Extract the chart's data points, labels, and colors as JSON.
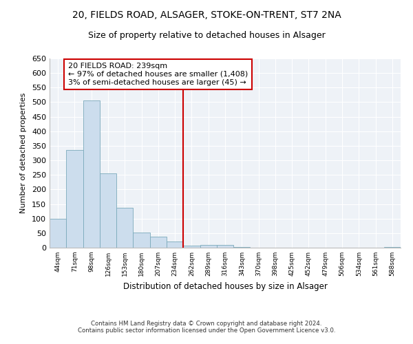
{
  "title1": "20, FIELDS ROAD, ALSAGER, STOKE-ON-TRENT, ST7 2NA",
  "title2": "Size of property relative to detached houses in Alsager",
  "xlabel": "Distribution of detached houses by size in Alsager",
  "ylabel": "Number of detached properties",
  "footer1": "Contains HM Land Registry data © Crown copyright and database right 2024.",
  "footer2": "Contains public sector information licensed under the Open Government Licence v3.0.",
  "bin_labels": [
    "44sqm",
    "71sqm",
    "98sqm",
    "126sqm",
    "153sqm",
    "180sqm",
    "207sqm",
    "234sqm",
    "262sqm",
    "289sqm",
    "316sqm",
    "343sqm",
    "370sqm",
    "398sqm",
    "425sqm",
    "452sqm",
    "479sqm",
    "506sqm",
    "534sqm",
    "561sqm",
    "588sqm"
  ],
  "bar_values": [
    100,
    335,
    505,
    255,
    138,
    53,
    38,
    22,
    6,
    10,
    10,
    3,
    1,
    1,
    1,
    1,
    0,
    0,
    0,
    0,
    3
  ],
  "bar_color": "#ccdded",
  "bar_edge_color": "#7aaabb",
  "vline_x_index": 7,
  "vline_color": "#cc0000",
  "annotation_title": "20 FIELDS ROAD: 239sqm",
  "annotation_line1": "← 97% of detached houses are smaller (1,408)",
  "annotation_line2": "3% of semi-detached houses are larger (45) →",
  "annotation_box_color": "#cc0000",
  "ylim": [
    0,
    650
  ],
  "yticks": [
    0,
    50,
    100,
    150,
    200,
    250,
    300,
    350,
    400,
    450,
    500,
    550,
    600,
    650
  ],
  "bg_color": "#eef2f7",
  "title1_fontsize": 10,
  "title2_fontsize": 9,
  "ann_fontsize": 8
}
